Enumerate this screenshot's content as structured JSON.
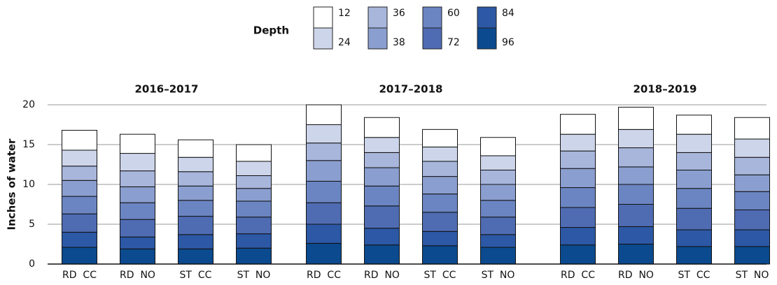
{
  "chart_data": [
    {
      "type": "bar",
      "stacked": true,
      "title": "2016–2017",
      "ylabel": "Inches of water",
      "legend_title": "Depth",
      "categories": [
        "RD  CC",
        "RD  NO",
        "ST  CC",
        "ST  NO"
      ],
      "ylim": [
        0,
        20
      ],
      "yticks": [
        0,
        5,
        10,
        15,
        20
      ],
      "grid": true,
      "series": [
        {
          "name": "12",
          "color": "#ffffff",
          "values": [
            2.5,
            2.4,
            2.2,
            2.1
          ]
        },
        {
          "name": "24",
          "color": "#cdd5ea",
          "values": [
            2.0,
            2.2,
            1.8,
            1.8
          ]
        },
        {
          "name": "36",
          "color": "#a8b6dc",
          "values": [
            1.8,
            2.0,
            1.8,
            1.6
          ]
        },
        {
          "name": "38",
          "color": "#8a9ecf",
          "values": [
            2.0,
            2.0,
            1.8,
            1.6
          ]
        },
        {
          "name": "60",
          "color": "#6b85c2",
          "values": [
            2.2,
            2.1,
            2.0,
            2.0
          ]
        },
        {
          "name": "72",
          "color": "#4f6cb3",
          "values": [
            2.3,
            2.2,
            2.3,
            2.1
          ]
        },
        {
          "name": "84",
          "color": "#2c58a5",
          "values": [
            1.9,
            1.5,
            1.8,
            1.8
          ]
        },
        {
          "name": "96",
          "color": "#0b4a8e",
          "values": [
            2.1,
            1.9,
            1.9,
            2.0
          ]
        }
      ]
    },
    {
      "type": "bar",
      "stacked": true,
      "title": "2017–2018",
      "categories": [
        "RD  CC",
        "RD  NO",
        "ST  CC",
        "ST  NO"
      ],
      "ylim": [
        0,
        20
      ],
      "yticks": [
        0,
        5,
        10,
        15,
        20
      ],
      "grid": true,
      "series": [
        {
          "name": "12",
          "color": "#ffffff",
          "values": [
            2.5,
            2.5,
            2.2,
            2.3
          ]
        },
        {
          "name": "24",
          "color": "#cdd5ea",
          "values": [
            2.3,
            1.9,
            1.8,
            1.8
          ]
        },
        {
          "name": "36",
          "color": "#a8b6dc",
          "values": [
            2.2,
            1.9,
            1.9,
            1.8
          ]
        },
        {
          "name": "38",
          "color": "#8a9ecf",
          "values": [
            2.6,
            2.3,
            2.2,
            2.0
          ]
        },
        {
          "name": "60",
          "color": "#6b85c2",
          "values": [
            2.7,
            2.5,
            2.3,
            2.1
          ]
        },
        {
          "name": "72",
          "color": "#4f6cb3",
          "values": [
            2.7,
            2.8,
            2.4,
            2.2
          ]
        },
        {
          "name": "84",
          "color": "#2c58a5",
          "values": [
            2.4,
            2.1,
            1.8,
            1.6
          ]
        },
        {
          "name": "96",
          "color": "#0b4a8e",
          "values": [
            2.6,
            2.4,
            2.3,
            2.1
          ]
        }
      ]
    },
    {
      "type": "bar",
      "stacked": true,
      "title": "2018–2019",
      "categories": [
        "RD  CC",
        "RD  NO",
        "ST  CC",
        "ST  NO"
      ],
      "ylim": [
        0,
        20
      ],
      "yticks": [
        0,
        5,
        10,
        15,
        20
      ],
      "grid": true,
      "series": [
        {
          "name": "12",
          "color": "#ffffff",
          "values": [
            2.5,
            2.8,
            2.4,
            2.7
          ]
        },
        {
          "name": "24",
          "color": "#cdd5ea",
          "values": [
            2.1,
            2.3,
            2.3,
            2.3
          ]
        },
        {
          "name": "36",
          "color": "#a8b6dc",
          "values": [
            2.2,
            2.4,
            2.2,
            2.2
          ]
        },
        {
          "name": "38",
          "color": "#8a9ecf",
          "values": [
            2.4,
            2.2,
            2.3,
            2.1
          ]
        },
        {
          "name": "60",
          "color": "#6b85c2",
          "values": [
            2.5,
            2.5,
            2.5,
            2.3
          ]
        },
        {
          "name": "72",
          "color": "#4f6cb3",
          "values": [
            2.5,
            2.8,
            2.7,
            2.5
          ]
        },
        {
          "name": "84",
          "color": "#2c58a5",
          "values": [
            2.2,
            2.2,
            2.1,
            2.1
          ]
        },
        {
          "name": "96",
          "color": "#0b4a8e",
          "values": [
            2.4,
            2.5,
            2.2,
            2.2
          ]
        }
      ]
    }
  ]
}
